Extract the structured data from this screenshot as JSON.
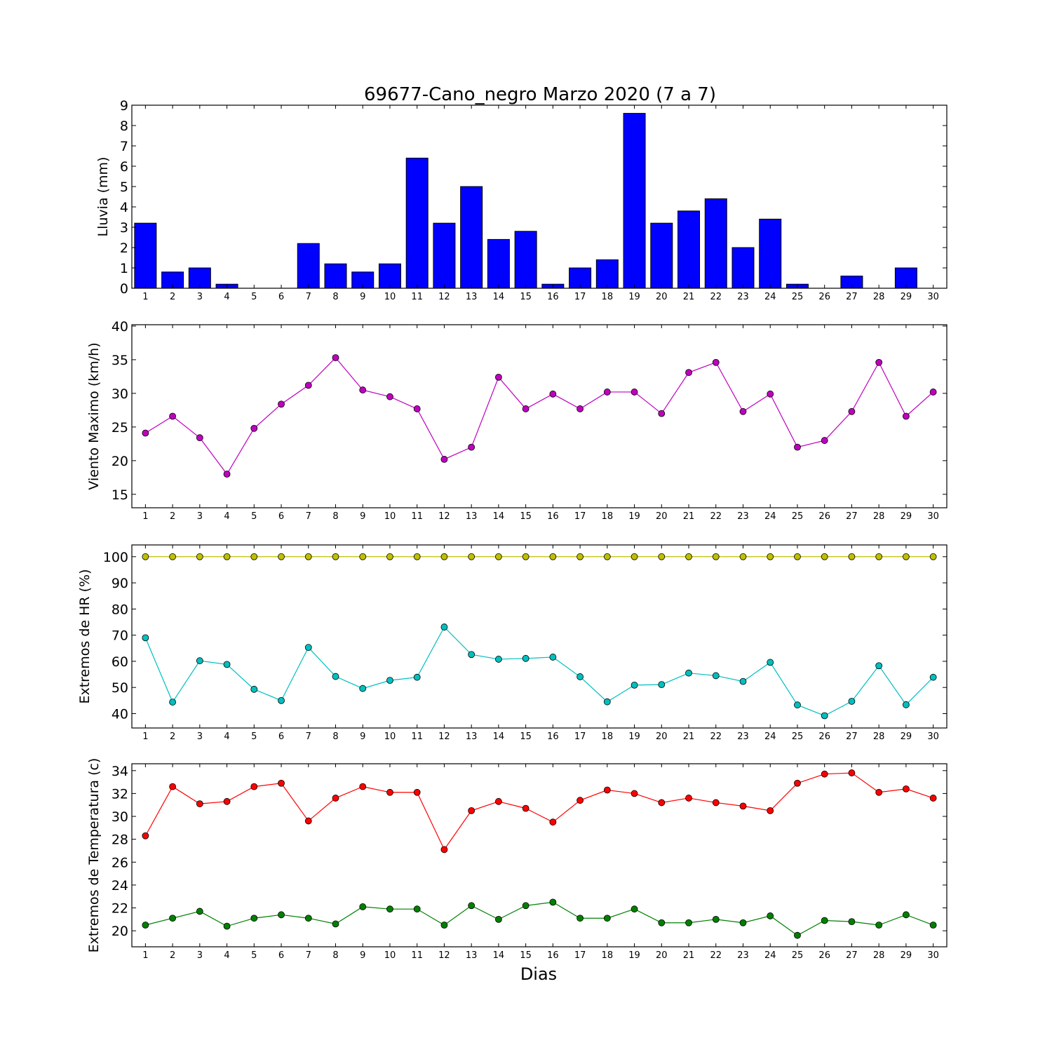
{
  "chart_data": [
    {
      "type": "bar",
      "title": "69677-Cano_negro Marzo 2020  (7 a 7)",
      "xlabel": "",
      "ylabel": "Lluvia (mm)",
      "ylim": [
        0,
        9
      ],
      "yticks": [
        0,
        1,
        2,
        3,
        4,
        5,
        6,
        7,
        8,
        9
      ],
      "x": [
        1,
        2,
        3,
        4,
        5,
        6,
        7,
        8,
        9,
        10,
        11,
        12,
        13,
        14,
        15,
        16,
        17,
        18,
        19,
        20,
        21,
        22,
        23,
        24,
        25,
        26,
        27,
        28,
        29,
        30
      ],
      "values": [
        3.2,
        0.8,
        1.0,
        0.2,
        0.0,
        0.0,
        2.2,
        1.2,
        0.8,
        1.2,
        6.4,
        3.2,
        5.0,
        2.4,
        2.8,
        0.2,
        1.0,
        1.4,
        8.6,
        3.2,
        3.8,
        4.4,
        2.0,
        3.4,
        0.2,
        0.0,
        0.6,
        0.0,
        1.0,
        0.0
      ],
      "color": "#0000ff",
      "grid": false
    },
    {
      "type": "line",
      "title": "",
      "xlabel": "",
      "ylabel": "Viento Maximo (km/h)",
      "ylim": [
        13,
        40.2
      ],
      "yticks": [
        15,
        20,
        25,
        30,
        35,
        40
      ],
      "x": [
        1,
        2,
        3,
        4,
        5,
        6,
        7,
        8,
        9,
        10,
        11,
        12,
        13,
        14,
        15,
        16,
        17,
        18,
        19,
        20,
        21,
        22,
        23,
        24,
        25,
        26,
        27,
        28,
        29,
        30
      ],
      "series": [
        {
          "color": "#bf00bf",
          "values": [
            24.1,
            26.6,
            23.4,
            18.0,
            24.8,
            28.4,
            31.2,
            35.3,
            30.5,
            29.5,
            27.7,
            20.2,
            22.0,
            32.4,
            27.7,
            29.9,
            27.7,
            30.2,
            30.2,
            27.0,
            33.1,
            34.6,
            27.3,
            29.9,
            22.0,
            23.0,
            27.3,
            34.6,
            26.6,
            30.2
          ]
        }
      ],
      "grid": false
    },
    {
      "type": "line",
      "title": "",
      "xlabel": "",
      "ylabel": "Extremos de HR (%)",
      "ylim": [
        34.5,
        104.5
      ],
      "yticks": [
        40,
        50,
        60,
        70,
        80,
        90,
        100
      ],
      "x": [
        1,
        2,
        3,
        4,
        5,
        6,
        7,
        8,
        9,
        10,
        11,
        12,
        13,
        14,
        15,
        16,
        17,
        18,
        19,
        20,
        21,
        22,
        23,
        24,
        25,
        26,
        27,
        28,
        29,
        30
      ],
      "series": [
        {
          "color": "#bfbf00",
          "values": [
            100,
            100,
            100,
            100,
            100,
            100,
            100,
            100,
            100,
            100,
            100,
            100,
            100,
            100,
            100,
            100,
            100,
            100,
            100,
            100,
            100,
            100,
            100,
            100,
            100,
            100,
            100,
            100,
            100,
            100
          ]
        },
        {
          "color": "#00bfbf",
          "values": [
            69.0,
            44.4,
            60.2,
            58.8,
            49.3,
            45.0,
            65.3,
            54.2,
            49.6,
            52.7,
            53.9,
            73.1,
            62.6,
            60.8,
            61.1,
            61.6,
            54.1,
            44.5,
            50.9,
            51.1,
            55.5,
            54.5,
            52.3,
            59.6,
            43.3,
            39.2,
            44.7,
            58.3,
            43.4,
            53.9
          ]
        }
      ],
      "grid": false
    },
    {
      "type": "line",
      "title": "",
      "xlabel": "Dias",
      "ylabel": "Extremos de Temperatura (c)",
      "ylim": [
        18.6,
        34.6
      ],
      "yticks": [
        20,
        22,
        24,
        26,
        28,
        30,
        32,
        34
      ],
      "x": [
        1,
        2,
        3,
        4,
        5,
        6,
        7,
        8,
        9,
        10,
        11,
        12,
        13,
        14,
        15,
        16,
        17,
        18,
        19,
        20,
        21,
        22,
        23,
        24,
        25,
        26,
        27,
        28,
        29,
        30
      ],
      "series": [
        {
          "color": "#ff0000",
          "values": [
            28.3,
            32.6,
            31.1,
            31.3,
            32.6,
            32.9,
            29.6,
            31.6,
            32.6,
            32.1,
            32.1,
            27.1,
            30.5,
            31.3,
            30.7,
            29.5,
            31.4,
            32.3,
            32.0,
            31.2,
            31.6,
            31.2,
            30.9,
            30.5,
            32.9,
            33.7,
            33.8,
            32.1,
            32.4,
            31.6
          ]
        },
        {
          "color": "#008000",
          "values": [
            20.5,
            21.1,
            21.7,
            20.4,
            21.1,
            21.4,
            21.1,
            20.6,
            22.1,
            21.9,
            21.9,
            20.5,
            22.2,
            21.0,
            22.2,
            22.5,
            21.1,
            21.1,
            21.9,
            20.7,
            20.7,
            21.0,
            20.7,
            21.3,
            19.6,
            20.9,
            20.8,
            20.5,
            21.4,
            20.5
          ]
        }
      ],
      "grid": false
    }
  ]
}
